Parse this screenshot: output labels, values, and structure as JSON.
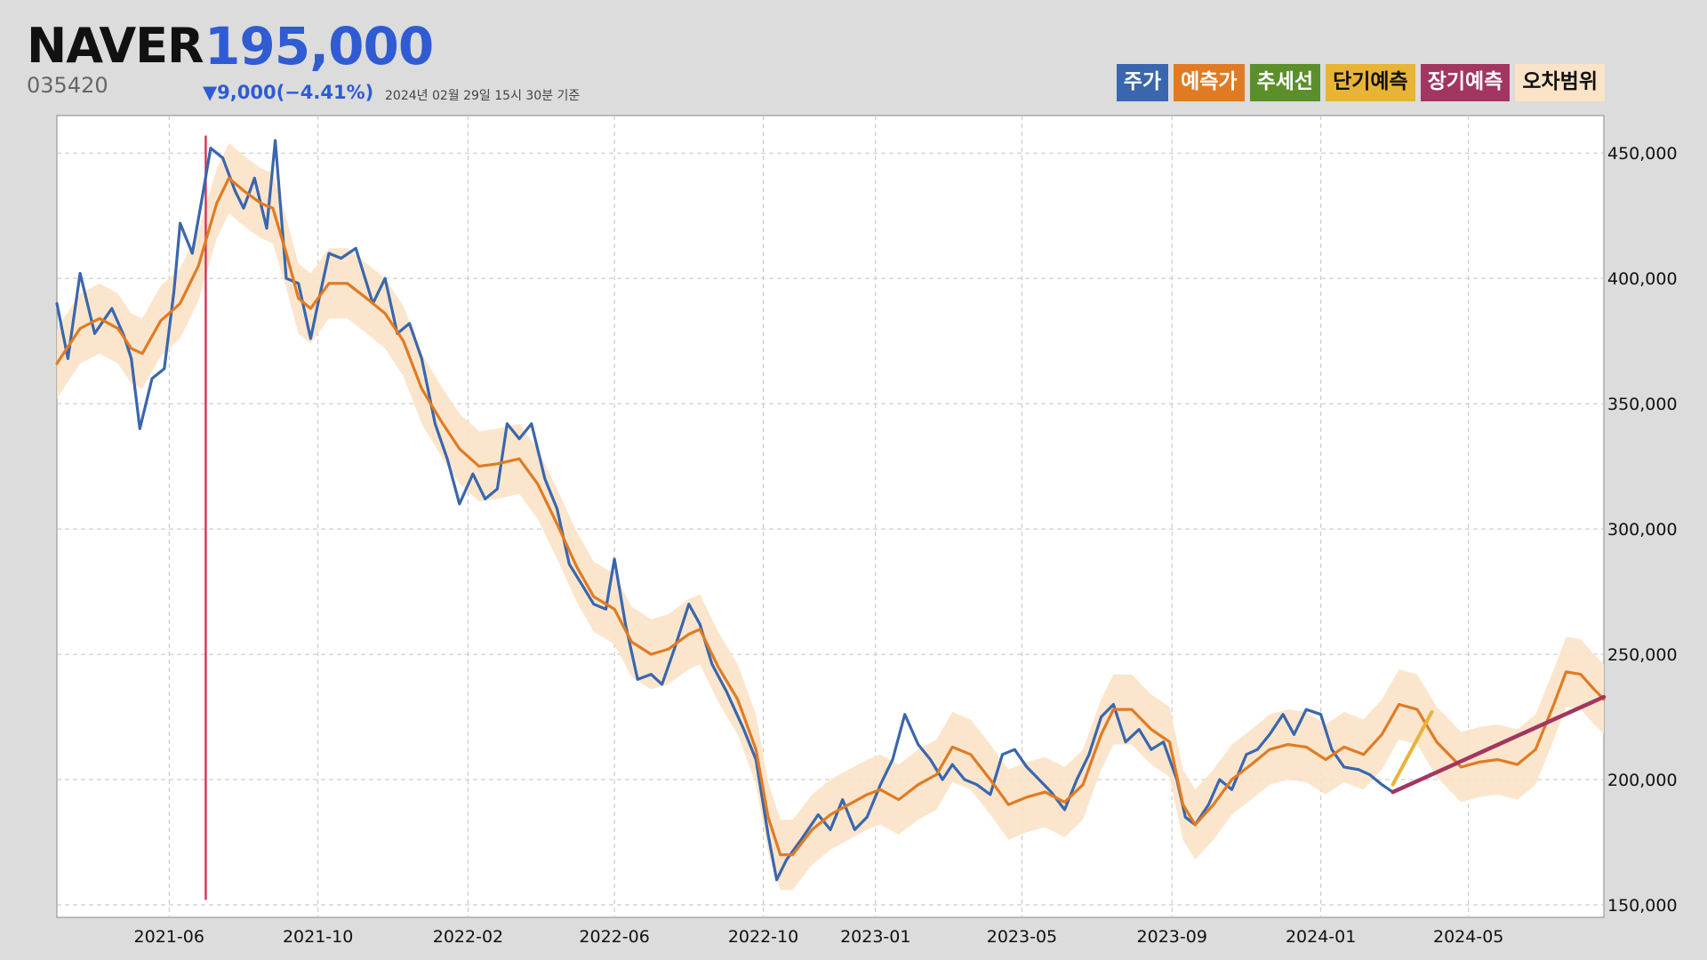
{
  "header": {
    "name": "NAVER",
    "price": "195,000",
    "code": "035420",
    "change": "▼9,000(−4.41%)",
    "as_of": "2024년 02월 29일 15시 30분 기준"
  },
  "legend": [
    {
      "label": "주가",
      "color": "#3a66ad",
      "text_color": "#ffffff"
    },
    {
      "label": "예측가",
      "color": "#e07b24",
      "text_color": "#ffffff"
    },
    {
      "label": "추세선",
      "color": "#5b8f2a",
      "text_color": "#ffffff"
    },
    {
      "label": "단기예측",
      "color": "#e8b436",
      "text_color": "#111111"
    },
    {
      "label": "장기예측",
      "color": "#a23660",
      "text_color": "#ffffff"
    },
    {
      "label": "오차범위",
      "color": "#fbe3c8",
      "text_color": "#111111"
    }
  ],
  "chart_data": {
    "type": "line",
    "x_range": [
      "2021-03-01",
      "2024-08-20"
    ],
    "ylim": [
      150000,
      460000
    ],
    "x_ticks": [
      "2021-06",
      "2021-10",
      "2022-02",
      "2022-06",
      "2022-10",
      "2023-01",
      "2023-05",
      "2023-09",
      "2024-01",
      "2024-05"
    ],
    "y_ticks": [
      150000,
      200000,
      250000,
      300000,
      350000,
      400000,
      450000
    ],
    "y_tick_labels": [
      "150,000",
      "200,000",
      "250,000",
      "300,000",
      "350,000",
      "400,000",
      "450,000"
    ],
    "grid": true,
    "vertical_marker": {
      "date": "2021-07-01",
      "color": "#d23a5c"
    },
    "band_half_width": 14000,
    "series": [
      {
        "name": "주가",
        "color": "#3a66ad",
        "points": [
          [
            "2021-03-01",
            390000
          ],
          [
            "2021-03-10",
            368000
          ],
          [
            "2021-03-20",
            402000
          ],
          [
            "2021-04-01",
            378000
          ],
          [
            "2021-04-15",
            388000
          ],
          [
            "2021-04-25",
            377000
          ],
          [
            "2021-05-01",
            368000
          ],
          [
            "2021-05-08",
            340000
          ],
          [
            "2021-05-18",
            360000
          ],
          [
            "2021-05-28",
            364000
          ],
          [
            "2021-06-05",
            395000
          ],
          [
            "2021-06-10",
            422000
          ],
          [
            "2021-06-20",
            410000
          ],
          [
            "2021-06-28",
            432000
          ],
          [
            "2021-07-05",
            452000
          ],
          [
            "2021-07-15",
            448000
          ],
          [
            "2021-07-25",
            435000
          ],
          [
            "2021-08-01",
            428000
          ],
          [
            "2021-08-10",
            440000
          ],
          [
            "2021-08-20",
            420000
          ],
          [
            "2021-08-27",
            455000
          ],
          [
            "2021-09-05",
            400000
          ],
          [
            "2021-09-15",
            398000
          ],
          [
            "2021-09-25",
            376000
          ],
          [
            "2021-10-01",
            390000
          ],
          [
            "2021-10-10",
            410000
          ],
          [
            "2021-10-20",
            408000
          ],
          [
            "2021-11-01",
            412000
          ],
          [
            "2021-11-15",
            390000
          ],
          [
            "2021-11-25",
            400000
          ],
          [
            "2021-12-05",
            378000
          ],
          [
            "2021-12-15",
            382000
          ],
          [
            "2021-12-25",
            368000
          ],
          [
            "2022-01-05",
            342000
          ],
          [
            "2022-01-15",
            328000
          ],
          [
            "2022-01-25",
            310000
          ],
          [
            "2022-02-05",
            322000
          ],
          [
            "2022-02-15",
            312000
          ],
          [
            "2022-02-25",
            316000
          ],
          [
            "2022-03-05",
            342000
          ],
          [
            "2022-03-15",
            336000
          ],
          [
            "2022-03-25",
            342000
          ],
          [
            "2022-04-05",
            320000
          ],
          [
            "2022-04-15",
            308000
          ],
          [
            "2022-04-25",
            286000
          ],
          [
            "2022-05-05",
            278000
          ],
          [
            "2022-05-15",
            270000
          ],
          [
            "2022-05-25",
            268000
          ],
          [
            "2022-06-01",
            288000
          ],
          [
            "2022-06-10",
            262000
          ],
          [
            "2022-06-20",
            240000
          ],
          [
            "2022-07-01",
            242000
          ],
          [
            "2022-07-10",
            238000
          ],
          [
            "2022-07-20",
            252000
          ],
          [
            "2022-08-01",
            270000
          ],
          [
            "2022-08-10",
            262000
          ],
          [
            "2022-08-20",
            246000
          ],
          [
            "2022-09-01",
            235000
          ],
          [
            "2022-09-15",
            220000
          ],
          [
            "2022-09-25",
            208000
          ],
          [
            "2022-10-05",
            178000
          ],
          [
            "2022-10-12",
            160000
          ],
          [
            "2022-10-20",
            168000
          ],
          [
            "2022-11-01",
            176000
          ],
          [
            "2022-11-15",
            186000
          ],
          [
            "2022-11-25",
            180000
          ],
          [
            "2022-12-05",
            192000
          ],
          [
            "2022-12-15",
            180000
          ],
          [
            "2022-12-25",
            185000
          ],
          [
            "2023-01-05",
            198000
          ],
          [
            "2023-01-15",
            208000
          ],
          [
            "2023-01-25",
            226000
          ],
          [
            "2023-02-05",
            214000
          ],
          [
            "2023-02-15",
            208000
          ],
          [
            "2023-02-25",
            200000
          ],
          [
            "2023-03-05",
            206000
          ],
          [
            "2023-03-15",
            200000
          ],
          [
            "2023-03-25",
            198000
          ],
          [
            "2023-04-05",
            194000
          ],
          [
            "2023-04-15",
            210000
          ],
          [
            "2023-04-25",
            212000
          ],
          [
            "2023-05-05",
            205000
          ],
          [
            "2023-05-15",
            200000
          ],
          [
            "2023-05-25",
            195000
          ],
          [
            "2023-06-05",
            188000
          ],
          [
            "2023-06-15",
            200000
          ],
          [
            "2023-06-25",
            210000
          ],
          [
            "2023-07-05",
            225000
          ],
          [
            "2023-07-15",
            230000
          ],
          [
            "2023-07-25",
            215000
          ],
          [
            "2023-08-05",
            220000
          ],
          [
            "2023-08-15",
            212000
          ],
          [
            "2023-08-25",
            215000
          ],
          [
            "2023-09-05",
            200000
          ],
          [
            "2023-09-12",
            185000
          ],
          [
            "2023-09-20",
            182000
          ],
          [
            "2023-10-01",
            190000
          ],
          [
            "2023-10-10",
            200000
          ],
          [
            "2023-10-20",
            196000
          ],
          [
            "2023-11-01",
            210000
          ],
          [
            "2023-11-10",
            212000
          ],
          [
            "2023-11-20",
            218000
          ],
          [
            "2023-12-01",
            226000
          ],
          [
            "2023-12-10",
            218000
          ],
          [
            "2023-12-20",
            228000
          ],
          [
            "2024-01-01",
            226000
          ],
          [
            "2024-01-10",
            212000
          ],
          [
            "2024-01-20",
            205000
          ],
          [
            "2024-02-01",
            204000
          ],
          [
            "2024-02-10",
            202000
          ],
          [
            "2024-02-20",
            198000
          ],
          [
            "2024-02-29",
            195000
          ]
        ]
      },
      {
        "name": "예측가",
        "color": "#e07b24",
        "points": [
          [
            "2021-03-01",
            366000
          ],
          [
            "2021-03-20",
            380000
          ],
          [
            "2021-04-05",
            384000
          ],
          [
            "2021-04-20",
            380000
          ],
          [
            "2021-05-01",
            372000
          ],
          [
            "2021-05-10",
            370000
          ],
          [
            "2021-05-25",
            383000
          ],
          [
            "2021-06-10",
            390000
          ],
          [
            "2021-06-25",
            405000
          ],
          [
            "2021-07-10",
            430000
          ],
          [
            "2021-07-20",
            440000
          ],
          [
            "2021-08-01",
            435000
          ],
          [
            "2021-08-15",
            430000
          ],
          [
            "2021-08-25",
            428000
          ],
          [
            "2021-09-05",
            410000
          ],
          [
            "2021-09-15",
            392000
          ],
          [
            "2021-09-25",
            388000
          ],
          [
            "2021-10-10",
            398000
          ],
          [
            "2021-10-25",
            398000
          ],
          [
            "2021-11-10",
            392000
          ],
          [
            "2021-11-25",
            386000
          ],
          [
            "2021-12-10",
            375000
          ],
          [
            "2021-12-25",
            356000
          ],
          [
            "2022-01-10",
            343000
          ],
          [
            "2022-01-25",
            332000
          ],
          [
            "2022-02-10",
            325000
          ],
          [
            "2022-02-25",
            326000
          ],
          [
            "2022-03-15",
            328000
          ],
          [
            "2022-03-30",
            318000
          ],
          [
            "2022-04-15",
            302000
          ],
          [
            "2022-05-01",
            285000
          ],
          [
            "2022-05-15",
            273000
          ],
          [
            "2022-06-01",
            268000
          ],
          [
            "2022-06-15",
            255000
          ],
          [
            "2022-07-01",
            250000
          ],
          [
            "2022-07-15",
            252000
          ],
          [
            "2022-08-01",
            258000
          ],
          [
            "2022-08-10",
            260000
          ],
          [
            "2022-08-25",
            245000
          ],
          [
            "2022-09-10",
            232000
          ],
          [
            "2022-09-25",
            212000
          ],
          [
            "2022-10-05",
            185000
          ],
          [
            "2022-10-15",
            170000
          ],
          [
            "2022-10-25",
            170000
          ],
          [
            "2022-11-10",
            180000
          ],
          [
            "2022-11-25",
            186000
          ],
          [
            "2022-12-10",
            190000
          ],
          [
            "2022-12-25",
            194000
          ],
          [
            "2023-01-05",
            196000
          ],
          [
            "2023-01-20",
            192000
          ],
          [
            "2023-02-05",
            198000
          ],
          [
            "2023-02-20",
            202000
          ],
          [
            "2023-03-05",
            213000
          ],
          [
            "2023-03-20",
            210000
          ],
          [
            "2023-04-05",
            200000
          ],
          [
            "2023-04-20",
            190000
          ],
          [
            "2023-05-05",
            193000
          ],
          [
            "2023-05-20",
            195000
          ],
          [
            "2023-06-05",
            191000
          ],
          [
            "2023-06-20",
            198000
          ],
          [
            "2023-07-05",
            218000
          ],
          [
            "2023-07-15",
            228000
          ],
          [
            "2023-07-30",
            228000
          ],
          [
            "2023-08-15",
            220000
          ],
          [
            "2023-08-30",
            215000
          ],
          [
            "2023-09-10",
            190000
          ],
          [
            "2023-09-20",
            182000
          ],
          [
            "2023-10-05",
            190000
          ],
          [
            "2023-10-20",
            200000
          ],
          [
            "2023-11-05",
            206000
          ],
          [
            "2023-11-20",
            212000
          ],
          [
            "2023-12-05",
            214000
          ],
          [
            "2023-12-20",
            213000
          ],
          [
            "2024-01-05",
            208000
          ],
          [
            "2024-01-20",
            213000
          ],
          [
            "2024-02-05",
            210000
          ],
          [
            "2024-02-20",
            218000
          ],
          [
            "2024-03-05",
            230000
          ],
          [
            "2024-03-20",
            228000
          ],
          [
            "2024-04-05",
            215000
          ],
          [
            "2024-04-25",
            205000
          ],
          [
            "2024-05-10",
            207000
          ],
          [
            "2024-05-25",
            208000
          ],
          [
            "2024-06-10",
            206000
          ],
          [
            "2024-06-25",
            212000
          ],
          [
            "2024-07-10",
            230000
          ],
          [
            "2024-07-20",
            243000
          ],
          [
            "2024-08-01",
            242000
          ],
          [
            "2024-08-12",
            236000
          ],
          [
            "2024-08-20",
            232000
          ]
        ]
      },
      {
        "name": "단기예측",
        "color": "#e8b436",
        "points": [
          [
            "2024-02-29",
            198000
          ],
          [
            "2024-04-01",
            227000
          ]
        ]
      },
      {
        "name": "장기예측",
        "color": "#a23660",
        "points": [
          [
            "2024-02-29",
            195000
          ],
          [
            "2024-08-20",
            233000
          ]
        ]
      }
    ]
  }
}
